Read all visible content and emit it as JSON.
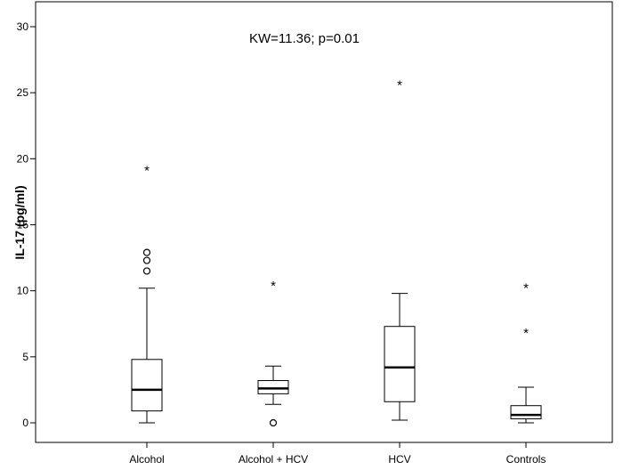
{
  "chart_data": {
    "type": "boxplot",
    "title": "",
    "xlabel": "",
    "ylabel": "IL-17 (pg/ml)",
    "annotation": "KW=11.36; p=0.01",
    "ylim": [
      -1,
      31
    ],
    "yticks": [
      0,
      5,
      10,
      15,
      20,
      25,
      30
    ],
    "ytick_labels": [
      "0",
      "5",
      "10",
      "15",
      "20",
      "25",
      "30"
    ],
    "grid": false,
    "categories": [
      "Alcohol",
      "Alcohol + HCV",
      "HCV",
      "Controls"
    ],
    "boxes": [
      {
        "category": "Alcohol",
        "whisker_low": 0.0,
        "q1": 0.9,
        "median": 2.5,
        "q3": 4.8,
        "whisker_high": 10.2,
        "outliers_circle": [
          11.5,
          12.3,
          12.9
        ],
        "outliers_star": [
          19.3
        ]
      },
      {
        "category": "Alcohol + HCV",
        "whisker_low": 1.4,
        "q1": 2.2,
        "median": 2.6,
        "q3": 3.2,
        "whisker_high": 4.3,
        "outliers_circle": [
          0.0
        ],
        "outliers_star": [
          10.6
        ]
      },
      {
        "category": "HCV",
        "whisker_low": 0.2,
        "q1": 1.6,
        "median": 4.2,
        "q3": 7.3,
        "whisker_high": 9.8,
        "outliers_circle": [],
        "outliers_star": [
          25.8
        ]
      },
      {
        "category": "Controls",
        "whisker_low": 0.0,
        "q1": 0.3,
        "median": 0.6,
        "q3": 1.3,
        "whisker_high": 2.7,
        "outliers_circle": [],
        "outliers_star": [
          7.0,
          10.4
        ]
      }
    ]
  }
}
